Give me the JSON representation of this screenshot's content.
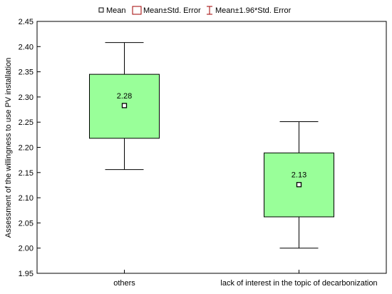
{
  "chart_data": {
    "type": "box",
    "ylabel": "Assessment of the willingness to use PV installation",
    "ylim": [
      1.95,
      2.45
    ],
    "yticks": [
      "1.95",
      "2.00",
      "2.05",
      "2.10",
      "2.15",
      "2.20",
      "2.25",
      "2.30",
      "2.35",
      "2.40",
      "2.45"
    ],
    "grid": false,
    "legend_position": "top",
    "legend": [
      "Mean",
      "Mean±Std. Error",
      "Mean±1.96*Std. Error"
    ],
    "categories": [
      "others",
      "lack of interest in the topic of decarbonization"
    ],
    "series": [
      {
        "mean": 2.283,
        "mean_label": "2.28",
        "se_low": 2.218,
        "se_high": 2.345,
        "ci_low": 2.156,
        "ci_high": 2.408
      },
      {
        "mean": 2.126,
        "mean_label": "2.13",
        "se_low": 2.062,
        "se_high": 2.189,
        "ci_low": 2.0,
        "ci_high": 2.251
      }
    ],
    "colors": {
      "box_fill": "#99ff99",
      "box_stroke": "#000000",
      "mean_marker": "#000000",
      "legend_se": "#a00000",
      "legend_ci": "#a00000"
    }
  }
}
